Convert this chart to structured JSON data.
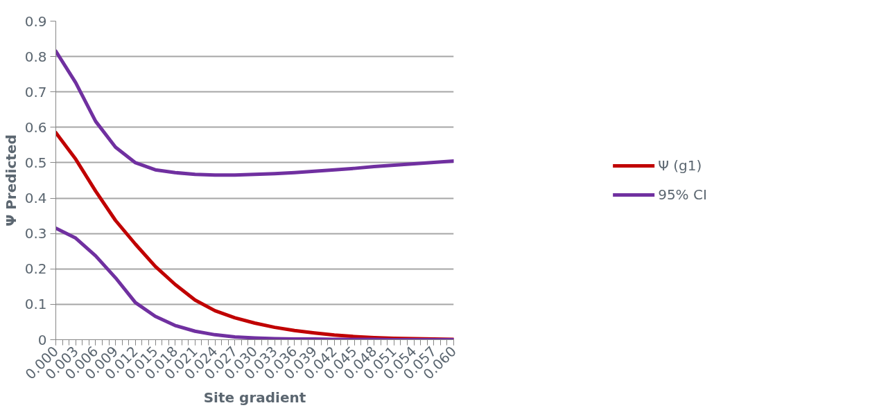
{
  "chart_data": {
    "type": "line",
    "xlabel": "Site gradient",
    "ylabel": "Ψ Predicted",
    "x": [
      0,
      0.003,
      0.006,
      0.009,
      0.012,
      0.015,
      0.018,
      0.021,
      0.024,
      0.027,
      0.03,
      0.033,
      0.036,
      0.039,
      0.042,
      0.045,
      0.048,
      0.051,
      0.054,
      0.057,
      0.06
    ],
    "series": [
      {
        "name": "Ψ (g1)",
        "color": "#c00000",
        "values": [
          0.585,
          0.51,
          0.42,
          0.337,
          0.27,
          0.207,
          0.156,
          0.112,
          0.082,
          0.062,
          0.047,
          0.035,
          0.026,
          0.019,
          0.013,
          0.009,
          0.006,
          0.004,
          0.003,
          0.002,
          0.001
        ]
      },
      {
        "name": "95% CI",
        "color": "#7030a0",
        "values": [
          0.815,
          0.726,
          0.617,
          0.544,
          0.5,
          0.48,
          0.472,
          0.467,
          0.465,
          0.465,
          0.467,
          0.469,
          0.472,
          0.476,
          0.48,
          0.484,
          0.489,
          0.493,
          0.497,
          0.501,
          0.505
        ]
      },
      {
        "name": null,
        "color": "#7030a0",
        "values": [
          0.315,
          0.287,
          0.237,
          0.175,
          0.105,
          0.066,
          0.04,
          0.024,
          0.014,
          0.008,
          0.005,
          0.003,
          0.002,
          0.002,
          0.001,
          0.001,
          0.001,
          0,
          0,
          0,
          0
        ]
      }
    ],
    "xlim": [
      0,
      0.06
    ],
    "xticks": [
      {
        "value": 0,
        "label": "0.000"
      },
      {
        "value": 0.003,
        "label": "0.003"
      },
      {
        "value": 0.006,
        "label": "0.006"
      },
      {
        "value": 0.009,
        "label": "0.009"
      },
      {
        "value": 0.012,
        "label": "0.012"
      },
      {
        "value": 0.015,
        "label": "0.015"
      },
      {
        "value": 0.018,
        "label": "0.018"
      },
      {
        "value": 0.021,
        "label": "0.021"
      },
      {
        "value": 0.024,
        "label": "0.024"
      },
      {
        "value": 0.027,
        "label": "0.027"
      },
      {
        "value": 0.03,
        "label": "0.030"
      },
      {
        "value": 0.033,
        "label": "0.033"
      },
      {
        "value": 0.036,
        "label": "0.036"
      },
      {
        "value": 0.039,
        "label": "0.039"
      },
      {
        "value": 0.042,
        "label": "0.042"
      },
      {
        "value": 0.045,
        "label": "0.045"
      },
      {
        "value": 0.048,
        "label": "0.048"
      },
      {
        "value": 0.051,
        "label": "0.051"
      },
      {
        "value": 0.054,
        "label": "0.054"
      },
      {
        "value": 0.057,
        "label": "0.057"
      },
      {
        "value": 0.06,
        "label": "0.060"
      }
    ],
    "ylim": [
      0,
      0.9
    ],
    "yticks": [
      0,
      0.1,
      0.2,
      0.3,
      0.4,
      0.5,
      0.6,
      0.7,
      0.8,
      0.9
    ],
    "grid": "y",
    "legend": "right",
    "marker": "none",
    "line_style": "solid"
  }
}
